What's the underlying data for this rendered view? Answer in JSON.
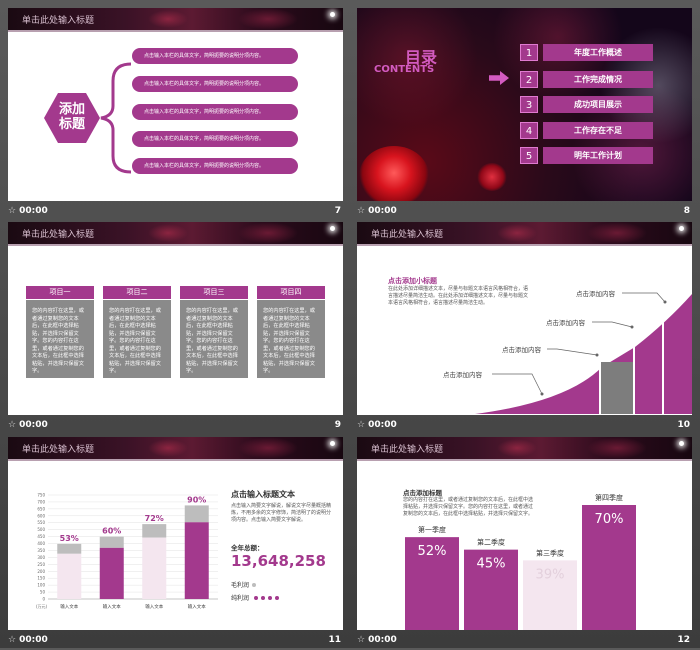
{
  "common": {
    "banner_title": "单击此处输入标题",
    "time": "00:00",
    "star": "☆"
  },
  "slide7": {
    "number": "7",
    "hex_line1": "添加",
    "hex_line2": "标题",
    "pill_text": "点击输入本栏的具体文字，简明扼要的说明分项内容。"
  },
  "slide8": {
    "number": "8",
    "title_cn": "目录",
    "title_en": "CONTENTS",
    "items": [
      {
        "num": "1",
        "label": "年度工作概述"
      },
      {
        "num": "2",
        "label": "工作完成情况"
      },
      {
        "num": "3",
        "label": "成功项目展示"
      },
      {
        "num": "4",
        "label": "工作存在不足"
      },
      {
        "num": "5",
        "label": "明年工作计划"
      }
    ]
  },
  "slide9": {
    "number": "9",
    "columns": [
      {
        "head": "项目一",
        "body": "您的内容打在这里，或者通过复制您的文本后，在此框中选择粘贴，并选择只保留文字。您的内容打在这里，或者通过复制您的文本后，在此框中选择粘贴，并选择只保留文字。"
      },
      {
        "head": "项目二",
        "body": "您的内容打在这里，或者通过复制您的文本后，在此框中选择粘贴，并选择只保留文字。您的内容打在这里，或者通过复制您的文本后，在此框中选择粘贴，并选择只保留文字。"
      },
      {
        "head": "项目三",
        "body": "您的内容打在这里，或者通过复制您的文本后，在此框中选择粘贴，并选择只保留文字。您的内容打在这里，或者通过复制您的文本后，在此框中选择粘贴，并选择只保留文字。"
      },
      {
        "head": "项目四",
        "body": "您的内容打在这里，或者通过复制您的文本后，在此框中选择粘贴，并选择只保留文字。您的内容打在这里，或者通过复制您的文本后，在此框中选择粘贴，并选择只保留文字。"
      }
    ]
  },
  "slide10": {
    "number": "10",
    "subtitle": "点击添加小标题",
    "body": "在此处添加详细描述文本，尽量与标题文本语言风格相符合，语言描述尽量简洁生动。在此处添加详细描述文本，尽量与标题文本语言风格相符合，语言描述尽量简洁生动。",
    "labels": [
      "点击添加内容",
      "点击添加内容",
      "点击添加内容",
      "点击添加内容"
    ]
  },
  "slide11": {
    "number": "11",
    "heading": "点击输入标题文本",
    "body": "点击输入简要文字解说，解说文字尽量概括精炼，不用多余的文字修饰，简洁明了的说明分项内容。点击输入简要文字解说。",
    "total_label": "全年总额：",
    "total_value": "13,648,258",
    "legend_gross": "毛利润",
    "legend_net": "纯利润",
    "y_unit": "(万元)",
    "colors": {
      "accent": "#a3398d",
      "grey": "#bdbdbd",
      "pale": "#f4e6ef"
    }
  },
  "slide12": {
    "number": "12",
    "subtitle": "点击添加标题",
    "body": "您的内容打在这里，或者通过复制您的文本后，在此框中选择粘贴，并选择只保留文字。您的内容打在这里，或者通过复制您的文本后，在此框中选择粘贴，并选择只保留文字。"
  },
  "chart_data": [
    {
      "type": "bar",
      "categories": [
        "输入文本",
        "输入文本",
        "输入文本",
        "输入文本"
      ],
      "values": [
        53,
        60,
        72,
        90
      ],
      "value_labels": [
        "53%",
        "60%",
        "72%",
        "90%"
      ],
      "ytick_labels": [
        "0",
        "50",
        "100",
        "150",
        "200",
        "250",
        "300",
        "350",
        "400",
        "450",
        "500",
        "550",
        "600",
        "650",
        "700",
        "750"
      ],
      "ylabel": "(万元)",
      "ylim": [
        0,
        750
      ],
      "grid": true
    },
    {
      "type": "bar",
      "categories": [
        "第一季度",
        "第二季度",
        "第三季度",
        "第四季度"
      ],
      "values": [
        52,
        45,
        39,
        70
      ],
      "value_labels": [
        "52%",
        "45%",
        "39%",
        "70%"
      ]
    }
  ]
}
